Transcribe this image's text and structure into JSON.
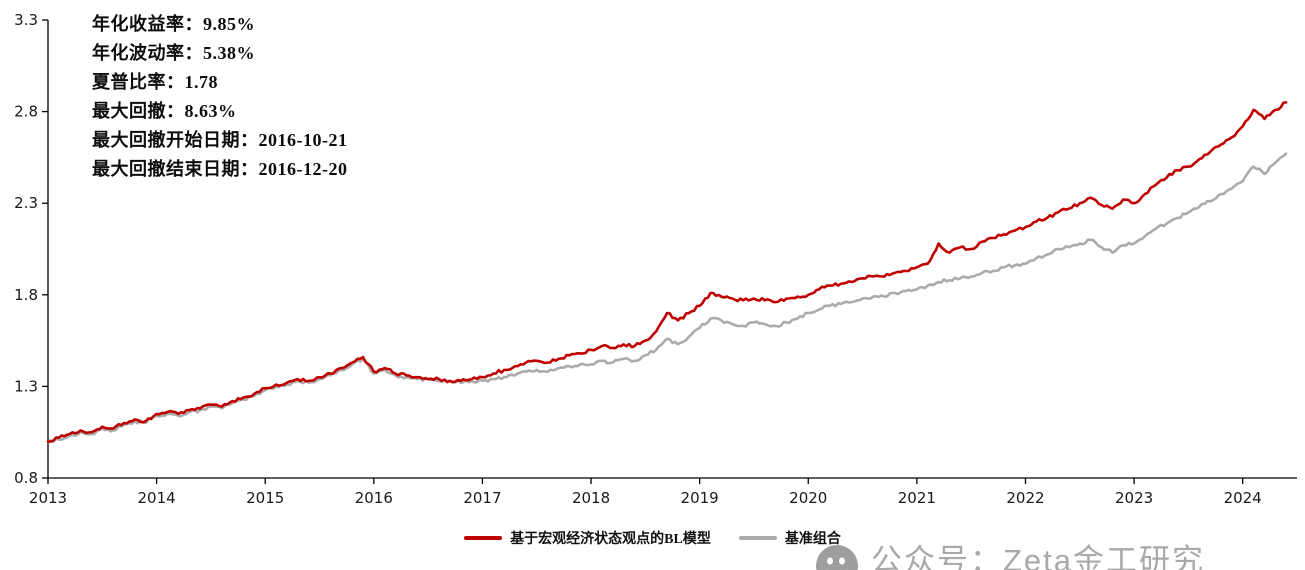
{
  "watermark": {
    "text": "公众号：Zeta金工研究"
  },
  "colors": {
    "accent_red": "#c00000",
    "benchmark_gray": "#ababab",
    "watermark_gray": "#a9a9a9",
    "axis": "#000000",
    "tick_text": "#1a1a1a"
  },
  "chart_data": {
    "type": "line",
    "title": "",
    "xlabel": "",
    "ylabel": "",
    "grid": false,
    "legend_position": "bottom-center",
    "x_ticks": [
      2013,
      2014,
      2015,
      2016,
      2017,
      2018,
      2019,
      2020,
      2021,
      2022,
      2023,
      2024
    ],
    "y_ticks": [
      0.8,
      1.3,
      1.8,
      2.3,
      2.8,
      3.3
    ],
    "x_range": [
      2013,
      2024.5
    ],
    "y_range": [
      0.8,
      3.3
    ],
    "x_start": 2013.0,
    "x_step": 0.1,
    "x_unit": "year",
    "annotations": [
      "年化收益率：9.85%",
      "年化波动率：5.38%",
      "夏普比率：1.78",
      "最大回撤：8.63%",
      "最大回撤开始日期：2016-10-21",
      "最大回撤结束日期：2016-12-20"
    ],
    "series": [
      {
        "name": "基于宏观经济状态观点的BL模型",
        "color": "#c00000",
        "width": 2.6,
        "values": [
          1.0,
          1.02,
          1.04,
          1.06,
          1.05,
          1.08,
          1.07,
          1.1,
          1.12,
          1.11,
          1.15,
          1.16,
          1.15,
          1.17,
          1.18,
          1.2,
          1.19,
          1.22,
          1.24,
          1.26,
          1.29,
          1.31,
          1.32,
          1.34,
          1.33,
          1.35,
          1.37,
          1.4,
          1.43,
          1.46,
          1.38,
          1.4,
          1.37,
          1.36,
          1.35,
          1.34,
          1.34,
          1.33,
          1.33,
          1.34,
          1.35,
          1.37,
          1.39,
          1.41,
          1.43,
          1.44,
          1.43,
          1.45,
          1.47,
          1.48,
          1.5,
          1.52,
          1.51,
          1.53,
          1.52,
          1.55,
          1.6,
          1.7,
          1.66,
          1.7,
          1.74,
          1.81,
          1.79,
          1.78,
          1.77,
          1.78,
          1.77,
          1.76,
          1.78,
          1.79,
          1.8,
          1.83,
          1.85,
          1.86,
          1.87,
          1.89,
          1.9,
          1.9,
          1.92,
          1.93,
          1.95,
          1.97,
          2.08,
          2.03,
          2.06,
          2.05,
          2.09,
          2.11,
          2.13,
          2.15,
          2.17,
          2.2,
          2.22,
          2.25,
          2.27,
          2.3,
          2.33,
          2.29,
          2.27,
          2.32,
          2.3,
          2.35,
          2.4,
          2.44,
          2.48,
          2.5,
          2.54,
          2.58,
          2.62,
          2.66,
          2.72,
          2.81,
          2.76,
          2.81,
          2.85
        ]
      },
      {
        "name": "基准组合",
        "color": "#ababab",
        "width": 2.6,
        "values": [
          1.0,
          1.01,
          1.03,
          1.05,
          1.04,
          1.07,
          1.06,
          1.09,
          1.11,
          1.1,
          1.14,
          1.15,
          1.14,
          1.16,
          1.17,
          1.19,
          1.18,
          1.21,
          1.23,
          1.25,
          1.28,
          1.3,
          1.31,
          1.33,
          1.32,
          1.34,
          1.36,
          1.39,
          1.42,
          1.45,
          1.37,
          1.39,
          1.36,
          1.35,
          1.34,
          1.34,
          1.33,
          1.33,
          1.32,
          1.33,
          1.33,
          1.34,
          1.35,
          1.36,
          1.38,
          1.39,
          1.38,
          1.4,
          1.41,
          1.42,
          1.42,
          1.44,
          1.43,
          1.45,
          1.44,
          1.47,
          1.5,
          1.56,
          1.53,
          1.57,
          1.62,
          1.67,
          1.66,
          1.64,
          1.63,
          1.65,
          1.64,
          1.63,
          1.65,
          1.67,
          1.7,
          1.72,
          1.74,
          1.75,
          1.76,
          1.78,
          1.79,
          1.79,
          1.81,
          1.82,
          1.83,
          1.85,
          1.87,
          1.88,
          1.89,
          1.9,
          1.92,
          1.93,
          1.95,
          1.96,
          1.97,
          2.0,
          2.02,
          2.05,
          2.06,
          2.08,
          2.1,
          2.06,
          2.03,
          2.07,
          2.08,
          2.12,
          2.16,
          2.19,
          2.22,
          2.25,
          2.28,
          2.31,
          2.35,
          2.38,
          2.42,
          2.5,
          2.46,
          2.52,
          2.57
        ]
      }
    ]
  }
}
